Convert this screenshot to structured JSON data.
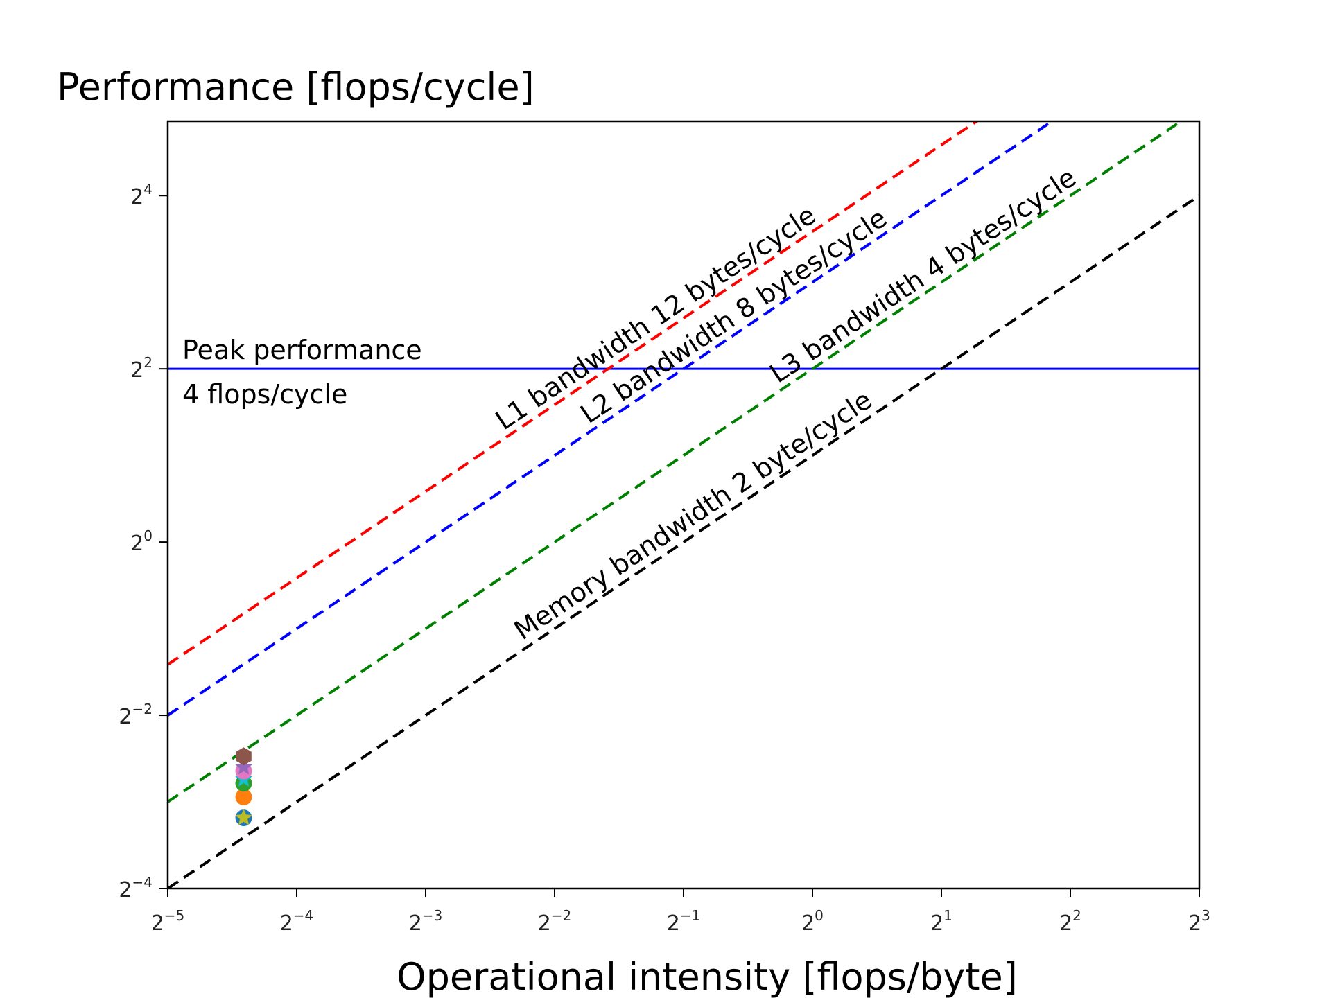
{
  "chart_data": {
    "type": "line",
    "ylabel": "Performance [flops/cycle]",
    "xlabel": "Operational intensity [flops/byte]",
    "x_scale": "log2",
    "y_scale": "log2",
    "xlim": [
      0.03125,
      8
    ],
    "ylim": [
      0.0625,
      29
    ],
    "x_ticks": [
      {
        "base": "2",
        "exp": "−5",
        "value": 0.03125
      },
      {
        "base": "2",
        "exp": "−4",
        "value": 0.0625
      },
      {
        "base": "2",
        "exp": "−3",
        "value": 0.125
      },
      {
        "base": "2",
        "exp": "−2",
        "value": 0.25
      },
      {
        "base": "2",
        "exp": "−1",
        "value": 0.5
      },
      {
        "base": "2",
        "exp": "0",
        "value": 1
      },
      {
        "base": "2",
        "exp": "1",
        "value": 2
      },
      {
        "base": "2",
        "exp": "2",
        "value": 4
      },
      {
        "base": "2",
        "exp": "3",
        "value": 8
      }
    ],
    "y_ticks": [
      {
        "base": "2",
        "exp": "4",
        "value": 16
      },
      {
        "base": "2",
        "exp": "2",
        "value": 4
      },
      {
        "base": "2",
        "exp": "0",
        "value": 1
      },
      {
        "base": "2",
        "exp": "−2",
        "value": 0.25
      },
      {
        "base": "2",
        "exp": "−4",
        "value": 0.0625
      }
    ],
    "peak": {
      "value": 4,
      "color": "#0000ff",
      "label_line1": "Peak performance",
      "label_line2": "4 flops/cycle"
    },
    "bandwidth_lines": [
      {
        "label": "L1 bandwidth 12 bytes/cycle",
        "bytes_per_cycle": 12,
        "color": "#ff0000"
      },
      {
        "label": "L2 bandwidth 8 bytes/cycle",
        "bytes_per_cycle": 8,
        "color": "#0000ff"
      },
      {
        "label": "L3 bandwidth 4 bytes/cycle",
        "bytes_per_cycle": 4,
        "color": "#008000"
      },
      {
        "label": "Memory bandwidth 2 byte/cycle",
        "bytes_per_cycle": 2,
        "color": "#000000"
      }
    ],
    "points": [
      {
        "x": 0.047,
        "y": 0.11,
        "color": "#1f77b4",
        "marker": "circle"
      },
      {
        "x": 0.047,
        "y": 0.11,
        "color": "#bcbd22",
        "marker": "star"
      },
      {
        "x": 0.047,
        "y": 0.13,
        "color": "#ff7f0e",
        "marker": "circle"
      },
      {
        "x": 0.047,
        "y": 0.145,
        "color": "#2ca02c",
        "marker": "circle"
      },
      {
        "x": 0.047,
        "y": 0.15,
        "color": "#17becf",
        "marker": "star"
      },
      {
        "x": 0.047,
        "y": 0.16,
        "color": "#e377c2",
        "marker": "circle"
      },
      {
        "x": 0.047,
        "y": 0.165,
        "color": "#9467bd",
        "marker": "star"
      },
      {
        "x": 0.047,
        "y": 0.18,
        "color": "#8c564b",
        "marker": "hexagon"
      }
    ]
  }
}
